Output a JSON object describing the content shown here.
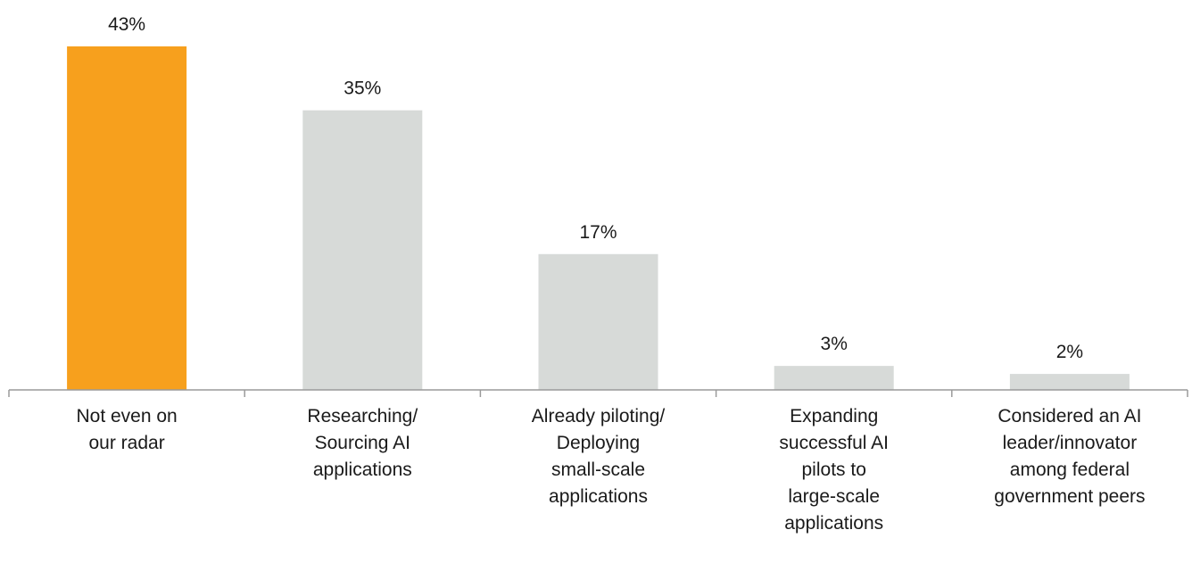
{
  "chart_data": {
    "type": "bar",
    "categories": [
      "Not even on\nour radar",
      "Researching/\nSourcing AI\napplications",
      "Already piloting/\nDeploying\nsmall-scale\napplications",
      "Expanding\nsuccessful AI\npilots to\nlarge-scale\napplications",
      "Considered an AI\nleader/innovator\namong federal\ngovernment peers"
    ],
    "values": [
      43,
      35,
      17,
      3,
      2
    ],
    "value_labels": [
      "43%",
      "35%",
      "17%",
      "3%",
      "2%"
    ],
    "colors": [
      "#f7a01d",
      "#d7dad8",
      "#d7dad8",
      "#d7dad8",
      "#d7dad8"
    ]
  }
}
